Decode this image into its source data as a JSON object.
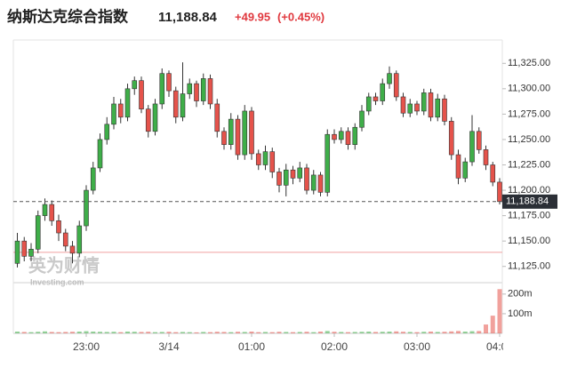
{
  "chart_data": {
    "type": "candlestick",
    "title": "纳斯达克综合指数",
    "price": "11,188.84",
    "change": "+49.95",
    "change_percent": "(+0.45%)",
    "watermark": {
      "brand": "英为财情",
      "site": "Investing.com"
    },
    "categories": [
      null,
      null,
      null,
      null,
      null,
      null,
      null,
      null,
      null,
      null,
      "23:00",
      null,
      null,
      null,
      null,
      null,
      null,
      null,
      null,
      null,
      null,
      null,
      "3/14",
      null,
      null,
      null,
      null,
      null,
      null,
      null,
      null,
      null,
      null,
      null,
      "01:00",
      null,
      null,
      null,
      null,
      null,
      null,
      null,
      null,
      null,
      null,
      null,
      "02:00",
      null,
      null,
      null,
      null,
      null,
      null,
      null,
      null,
      null,
      null,
      null,
      "03:00",
      null,
      null,
      null,
      null,
      null,
      null,
      null,
      null,
      null,
      null,
      null,
      "04:00"
    ],
    "open": [
      11128,
      11150,
      11135,
      11142,
      11175,
      11186,
      11170,
      11158,
      11145,
      11138,
      11165,
      11200,
      11222,
      11250,
      11265,
      11285,
      11272,
      11300,
      11308,
      11280,
      11258,
      11285,
      11315,
      11298,
      11272,
      11295,
      11305,
      11288,
      11310,
      11285,
      11258,
      11245,
      11270,
      11235,
      11278,
      11236,
      11225,
      11238,
      11218,
      11205,
      11220,
      11212,
      11222,
      11200,
      11215,
      11198,
      11255,
      11250,
      11258,
      11245,
      11262,
      11278,
      11292,
      11288,
      11305,
      11315,
      11292,
      11276,
      11285,
      11278,
      11296,
      11272,
      11290,
      11268,
      11235,
      11212,
      11228,
      11258,
      11240,
      11225,
      11208
    ],
    "high": [
      11158,
      11154,
      11148,
      11180,
      11192,
      11190,
      11176,
      11162,
      11150,
      11170,
      11205,
      11228,
      11256,
      11272,
      11292,
      11290,
      11305,
      11312,
      11312,
      11284,
      11290,
      11320,
      11318,
      11302,
      11326,
      11310,
      11308,
      11315,
      11314,
      11290,
      11262,
      11276,
      11274,
      11284,
      11282,
      11240,
      11244,
      11242,
      11222,
      11226,
      11224,
      11228,
      11226,
      11220,
      11218,
      11260,
      11260,
      11262,
      11262,
      11266,
      11284,
      11296,
      11296,
      11310,
      11322,
      11318,
      11296,
      11290,
      11288,
      11300,
      11300,
      11295,
      11294,
      11272,
      11240,
      11232,
      11274,
      11262,
      11244,
      11228,
      11212
    ],
    "low": [
      11124,
      11130,
      11130,
      11138,
      11170,
      11165,
      11150,
      11140,
      11128,
      11134,
      11160,
      11196,
      11218,
      11245,
      11260,
      11266,
      11268,
      11294,
      11276,
      11252,
      11254,
      11280,
      11292,
      11266,
      11268,
      11290,
      11282,
      11284,
      11280,
      11252,
      11240,
      11240,
      11230,
      11230,
      11230,
      11220,
      11220,
      11212,
      11198,
      11194,
      11206,
      11208,
      11196,
      11196,
      11194,
      11194,
      11246,
      11246,
      11240,
      11240,
      11258,
      11274,
      11284,
      11284,
      11300,
      11288,
      11272,
      11272,
      11274,
      11274,
      11268,
      11268,
      11264,
      11230,
      11206,
      11208,
      11224,
      11236,
      11220,
      11204,
      11186
    ],
    "close": [
      11150,
      11135,
      11142,
      11175,
      11186,
      11170,
      11158,
      11145,
      11138,
      11165,
      11200,
      11222,
      11250,
      11265,
      11285,
      11272,
      11300,
      11308,
      11280,
      11258,
      11285,
      11315,
      11298,
      11272,
      11295,
      11305,
      11288,
      11310,
      11285,
      11258,
      11245,
      11270,
      11235,
      11278,
      11236,
      11225,
      11238,
      11218,
      11205,
      11220,
      11212,
      11222,
      11200,
      11215,
      11198,
      11255,
      11250,
      11258,
      11245,
      11262,
      11278,
      11292,
      11288,
      11305,
      11315,
      11292,
      11276,
      11285,
      11278,
      11296,
      11272,
      11290,
      11268,
      11235,
      11212,
      11228,
      11258,
      11240,
      11225,
      11208,
      11188.84
    ],
    "volume": [
      9,
      7,
      6,
      8,
      10,
      7,
      6,
      7,
      8,
      9,
      11,
      9,
      8,
      7,
      8,
      6,
      9,
      8,
      7,
      8,
      6,
      7,
      8,
      6,
      7,
      6,
      5,
      7,
      6,
      8,
      7,
      6,
      8,
      7,
      9,
      6,
      7,
      6,
      8,
      7,
      6,
      7,
      8,
      6,
      9,
      12,
      8,
      7,
      6,
      7,
      8,
      9,
      7,
      8,
      9,
      10,
      8,
      7,
      6,
      8,
      9,
      7,
      8,
      10,
      12,
      9,
      11,
      12,
      45,
      90,
      225
    ],
    "up_color": "#3fae49",
    "down_color": "#e5534b",
    "ylim": [
      11109,
      11348
    ],
    "yticks": [
      {
        "value": 11125,
        "label": "11,125.00"
      },
      {
        "value": 11150,
        "label": "11,150.00"
      },
      {
        "value": 11175,
        "label": "11,175.00"
      },
      {
        "value": 11200,
        "label": "11,200.00"
      },
      {
        "value": 11225,
        "label": "11,225.00"
      },
      {
        "value": 11250,
        "label": "11,250.00"
      },
      {
        "value": 11275,
        "label": "11,275.00"
      },
      {
        "value": 11300,
        "label": "11,300.00"
      },
      {
        "value": 11325,
        "label": "11,325.00"
      }
    ],
    "y2lim": [
      0,
      240
    ],
    "y2ticks": [
      {
        "value": 100,
        "label": "100m"
      },
      {
        "value": 200,
        "label": "200m"
      }
    ],
    "last_price": {
      "value": 11188.84,
      "label": "11,188.84"
    },
    "reference_line": 11138.89
  }
}
